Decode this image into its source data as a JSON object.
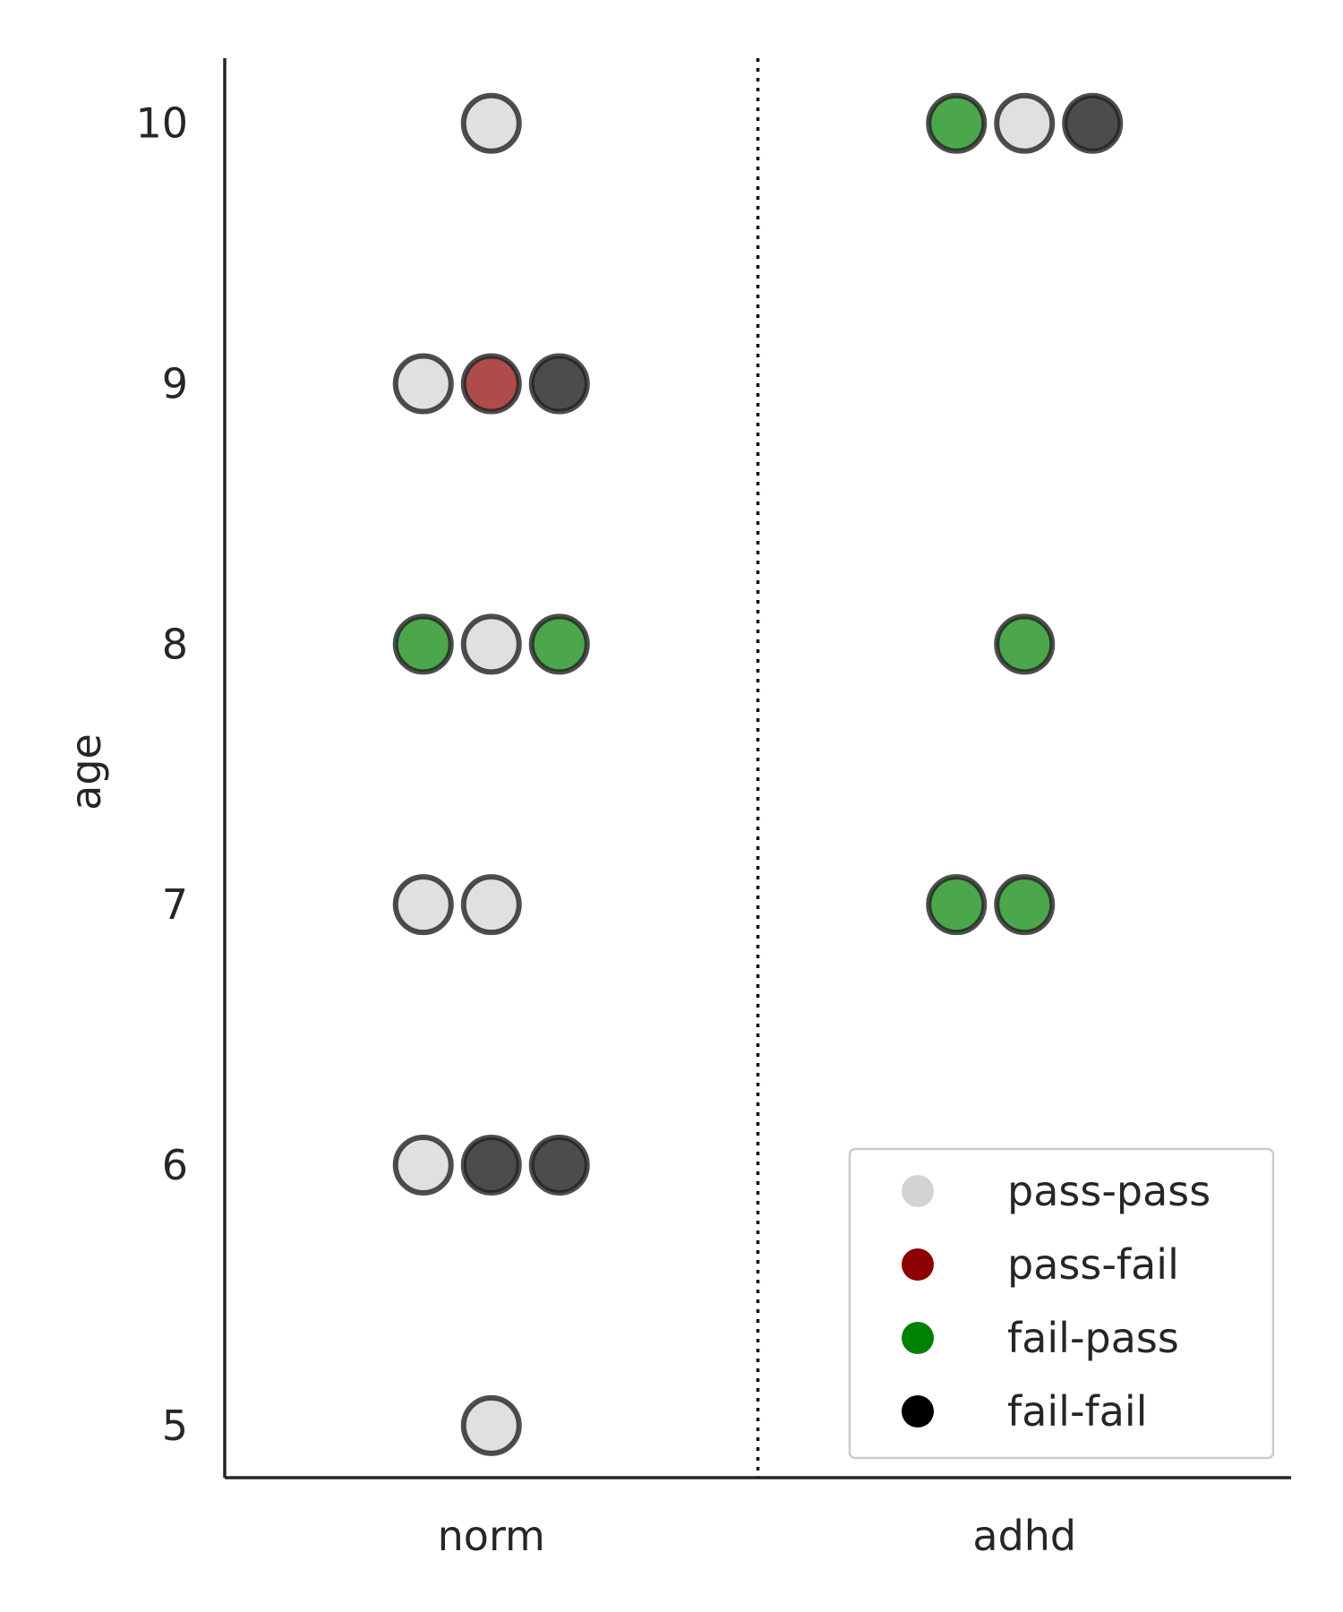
{
  "chart_data": {
    "type": "scatter",
    "subtype": "categorical-swarm",
    "title": "",
    "xlabel": "",
    "ylabel": "age",
    "categories": [
      "norm",
      "adhd"
    ],
    "ylim": [
      4.8,
      10.25
    ],
    "yticks": [
      5,
      6,
      7,
      8,
      9,
      10
    ],
    "grid": false,
    "divider": "dotted vertical line between norm and adhd",
    "series": [
      {
        "name": "pass-pass",
        "color": "#d3d3d3"
      },
      {
        "name": "pass-fail",
        "color": "#8b0000"
      },
      {
        "name": "fail-pass",
        "color": "#008000"
      },
      {
        "name": "fail-fail",
        "color": "#000000"
      }
    ],
    "points": [
      {
        "group": "norm",
        "age": 10,
        "outcome": "pass-pass"
      },
      {
        "group": "norm",
        "age": 9,
        "outcome": "pass-pass"
      },
      {
        "group": "norm",
        "age": 9,
        "outcome": "pass-fail"
      },
      {
        "group": "norm",
        "age": 9,
        "outcome": "fail-fail"
      },
      {
        "group": "norm",
        "age": 8,
        "outcome": "fail-pass"
      },
      {
        "group": "norm",
        "age": 8,
        "outcome": "pass-pass"
      },
      {
        "group": "norm",
        "age": 8,
        "outcome": "fail-pass"
      },
      {
        "group": "norm",
        "age": 7,
        "outcome": "pass-pass"
      },
      {
        "group": "norm",
        "age": 7,
        "outcome": "pass-pass"
      },
      {
        "group": "norm",
        "age": 6,
        "outcome": "pass-pass"
      },
      {
        "group": "norm",
        "age": 6,
        "outcome": "fail-fail"
      },
      {
        "group": "norm",
        "age": 6,
        "outcome": "fail-fail"
      },
      {
        "group": "norm",
        "age": 5,
        "outcome": "pass-pass"
      },
      {
        "group": "adhd",
        "age": 10,
        "outcome": "fail-pass"
      },
      {
        "group": "adhd",
        "age": 10,
        "outcome": "pass-pass"
      },
      {
        "group": "adhd",
        "age": 10,
        "outcome": "fail-fail"
      },
      {
        "group": "adhd",
        "age": 8,
        "outcome": "fail-pass"
      },
      {
        "group": "adhd",
        "age": 7,
        "outcome": "fail-pass"
      },
      {
        "group": "adhd",
        "age": 7,
        "outcome": "fail-pass"
      }
    ],
    "legend": {
      "position": "lower-right",
      "entries": [
        "pass-pass",
        "pass-fail",
        "fail-pass",
        "fail-fail"
      ]
    }
  }
}
